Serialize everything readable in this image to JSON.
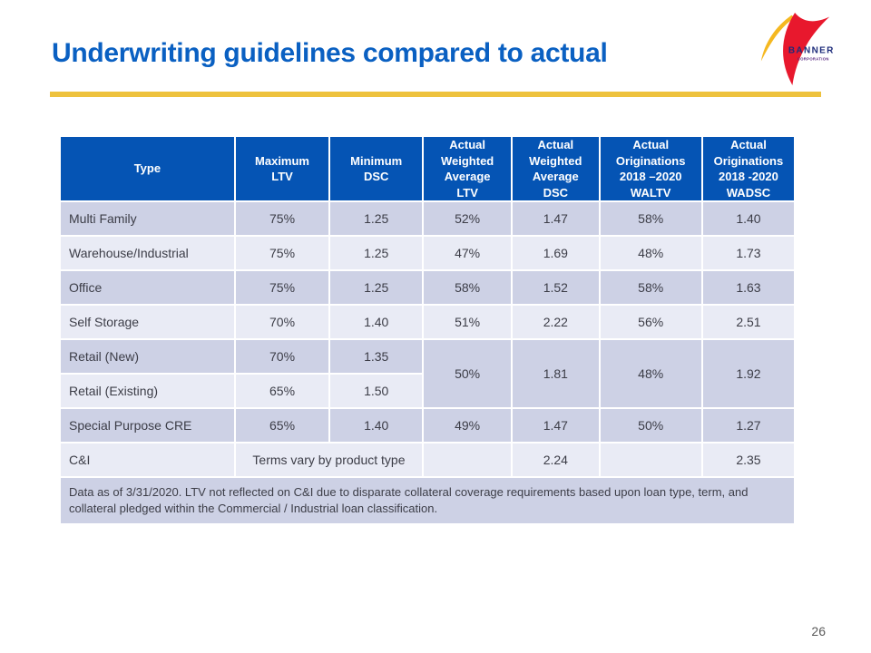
{
  "slide": {
    "title": "Underwriting guidelines compared to actual",
    "page_number": "26"
  },
  "logo": {
    "company": "BANNER",
    "suffix": "CORPORATION"
  },
  "colors": {
    "title_blue": "#0a60c2",
    "header_blue": "#0554b4",
    "gold": "#eec23d",
    "row_dark": "#cdd1e5",
    "row_light": "#e9ebf5",
    "body_text": "#3c3d47",
    "logo_red": "#e8182d",
    "logo_yellow": "#f5b820",
    "logo_navy": "#1c2b7a",
    "logo_purple": "#5a2a82"
  },
  "table": {
    "headers": [
      "Type",
      "Maximum\nLTV",
      "Minimum\nDSC",
      "Actual\nWeighted\nAverage\nLTV",
      "Actual\nWeighted\nAverage\nDSC",
      "Actual\nOriginations\n2018 –2020\nWALTV",
      "Actual\nOriginations\n2018 -2020\nWADSC"
    ],
    "rows": [
      {
        "shade": "dark",
        "cells": [
          {
            "t": "Multi Family",
            "align": "left"
          },
          {
            "t": "75%"
          },
          {
            "t": "1.25"
          },
          {
            "t": "52%"
          },
          {
            "t": "1.47"
          },
          {
            "t": "58%"
          },
          {
            "t": "1.40"
          }
        ]
      },
      {
        "shade": "light",
        "cells": [
          {
            "t": "Warehouse/Industrial",
            "align": "left"
          },
          {
            "t": "75%"
          },
          {
            "t": "1.25"
          },
          {
            "t": "47%"
          },
          {
            "t": "1.69"
          },
          {
            "t": "48%"
          },
          {
            "t": "1.73"
          }
        ]
      },
      {
        "shade": "dark",
        "cells": [
          {
            "t": "Office",
            "align": "left"
          },
          {
            "t": "75%"
          },
          {
            "t": "1.25"
          },
          {
            "t": "58%"
          },
          {
            "t": "1.52"
          },
          {
            "t": "58%"
          },
          {
            "t": "1.63"
          }
        ]
      },
      {
        "shade": "light",
        "cells": [
          {
            "t": "Self Storage",
            "align": "left"
          },
          {
            "t": "70%"
          },
          {
            "t": "1.40"
          },
          {
            "t": "51%"
          },
          {
            "t": "2.22"
          },
          {
            "t": "56%"
          },
          {
            "t": "2.51"
          }
        ]
      },
      {
        "shade": "dark",
        "cells": [
          {
            "t": "Retail (New)",
            "align": "left"
          },
          {
            "t": "70%"
          },
          {
            "t": "1.35"
          },
          {
            "t": "50%",
            "rowspan": 2,
            "shade": "dark"
          },
          {
            "t": "1.81",
            "rowspan": 2,
            "shade": "dark"
          },
          {
            "t": "48%",
            "rowspan": 2,
            "shade": "dark"
          },
          {
            "t": "1.92",
            "rowspan": 2,
            "shade": "dark"
          }
        ]
      },
      {
        "shade": "light",
        "cells": [
          {
            "t": "Retail (Existing)",
            "align": "left"
          },
          {
            "t": "65%"
          },
          {
            "t": "1.50"
          }
        ]
      },
      {
        "shade": "dark",
        "cells": [
          {
            "t": "Special Purpose CRE",
            "align": "left"
          },
          {
            "t": "65%"
          },
          {
            "t": "1.40"
          },
          {
            "t": "49%"
          },
          {
            "t": "1.47"
          },
          {
            "t": "50%"
          },
          {
            "t": "1.27"
          }
        ]
      },
      {
        "shade": "light",
        "cells": [
          {
            "t": "C&I",
            "align": "left"
          },
          {
            "t": "Terms vary by product type",
            "colspan": 2
          },
          {
            "t": ""
          },
          {
            "t": "2.24"
          },
          {
            "t": ""
          },
          {
            "t": "2.35"
          }
        ]
      }
    ],
    "footnote": "Data as of 3/31/2020.  LTV not reflected on C&I due to disparate collateral coverage requirements based upon loan type, term, and collateral pledged within the Commercial / Industrial loan classification."
  }
}
